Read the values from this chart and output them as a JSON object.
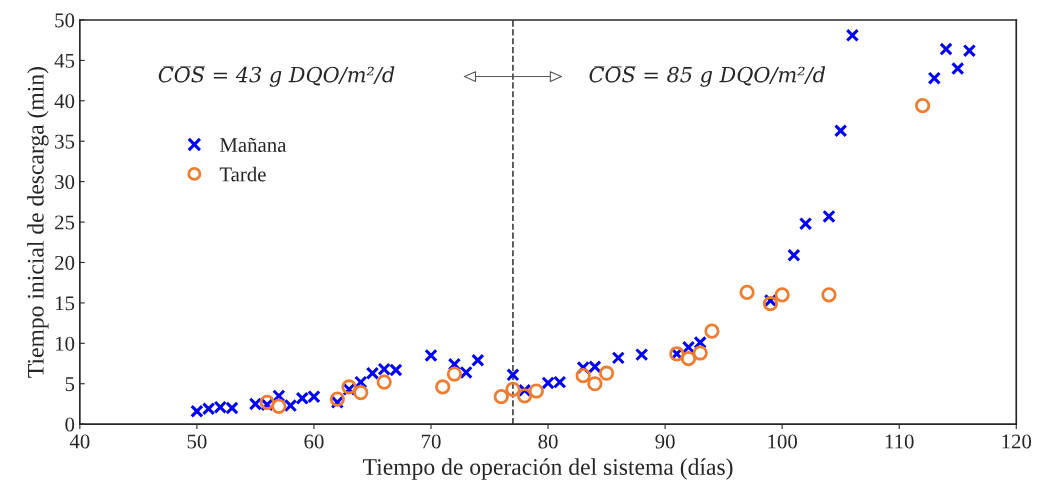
{
  "chart_data": {
    "type": "scatter",
    "xlabel": "Tiempo de operación del sistema (días)",
    "ylabel": "Tiempo inicial de descarga (min)",
    "xlim": [
      40,
      120
    ],
    "xticks": [
      40,
      50,
      60,
      70,
      80,
      90,
      100,
      110,
      120
    ],
    "ylim": [
      0,
      50
    ],
    "yticks": [
      0,
      5,
      10,
      15,
      20,
      25,
      30,
      35,
      40,
      45,
      50
    ],
    "grid": false,
    "legend": "left",
    "series": [
      {
        "name": "Mañana",
        "color": "#0000ff",
        "marker": "cross",
        "x": [
          50,
          51,
          52,
          53,
          55,
          56,
          57,
          58,
          59,
          60,
          62,
          63,
          64,
          65,
          66,
          67,
          70,
          72,
          73,
          74,
          77,
          78,
          80,
          81,
          83,
          84,
          86,
          88,
          91,
          92,
          93,
          99,
          101,
          102,
          104,
          105,
          106,
          113,
          114,
          115,
          116
        ],
        "values": [
          1.6,
          1.9,
          2.1,
          2.0,
          2.5,
          2.4,
          3.5,
          2.3,
          3.2,
          3.4,
          2.7,
          4.3,
          5.2,
          6.3,
          6.8,
          6.7,
          8.5,
          7.4,
          6.4,
          7.9,
          6.1,
          4.2,
          5.1,
          5.2,
          7.0,
          7.1,
          8.2,
          8.6,
          8.7,
          9.5,
          10.1,
          15.3,
          20.9,
          24.8,
          25.7,
          36.3,
          48.1,
          42.8,
          46.4,
          44.0,
          46.2
        ]
      },
      {
        "name": "Tarde",
        "color": "#ed7d31",
        "marker": "circle",
        "x": [
          56,
          57,
          62,
          63,
          64,
          66,
          71,
          72,
          76,
          77,
          78,
          79,
          83,
          84,
          85,
          91,
          92,
          93,
          94,
          97,
          99,
          100,
          104,
          112
        ],
        "values": [
          2.7,
          2.2,
          3.1,
          4.6,
          3.9,
          5.2,
          4.6,
          6.2,
          3.4,
          4.3,
          3.5,
          4.1,
          6.0,
          5.0,
          6.3,
          8.7,
          8.1,
          8.8,
          11.5,
          16.3,
          14.9,
          16.0,
          16.0,
          39.4
        ]
      }
    ],
    "ref_lines": [
      {
        "axis": "x",
        "value": 77,
        "line_style": "dashed",
        "color": "#404040"
      }
    ],
    "annotations": [
      "C̅O̅S̅ = 43 g DQO/m²/d",
      "C̅O̅S̅ = 85 g DQO/m²/d"
    ]
  }
}
